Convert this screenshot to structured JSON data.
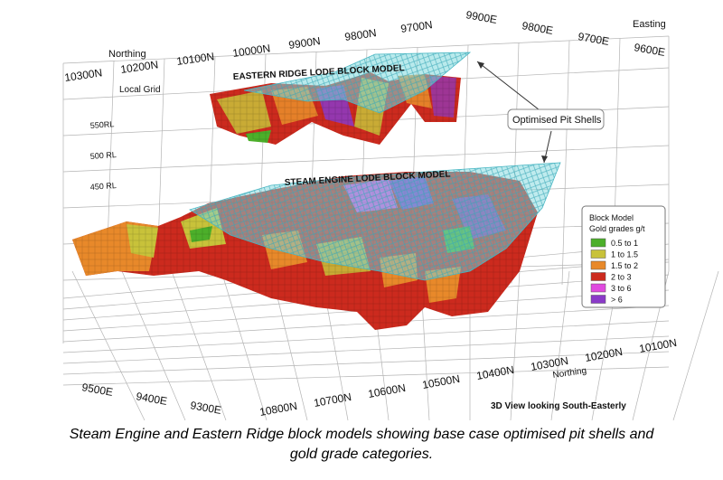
{
  "figure": {
    "northing_top": [
      "10300N",
      "10200N",
      "10100N",
      "10000N",
      "9900N",
      "9800N",
      "9700N"
    ],
    "northing_top_label": "Northing",
    "local_grid_label": "Local Grid",
    "easting_top": [
      "9900E",
      "9800E",
      "9700E",
      "9600E"
    ],
    "easting_top_label": "Easting",
    "rl_labels": [
      "550RL",
      "500 RL",
      "450 RL"
    ],
    "eastern_model_label": "EASTERN RIDGE LODE BLOCK MODEL",
    "steam_model_label": "STEAM ENGINE LODE BLOCK MODEL",
    "pit_shells_label": "Optimised Pit Shells",
    "easting_bottom": [
      "9500E",
      "9400E",
      "9300E"
    ],
    "northing_bottom": [
      "10800N",
      "10700N",
      "10600N",
      "10500N",
      "10400N",
      "10300N",
      "10200N",
      "10100N"
    ],
    "northing_bottom_label": "Northing",
    "view_label": "3D View looking South-Easterly"
  },
  "legend": {
    "title_line1": "Block Model",
    "title_line2": "Gold grades g/t",
    "items": [
      {
        "label": "0.5 to 1",
        "color": "#4caf2a"
      },
      {
        "label": "1 to 1.5",
        "color": "#c8c23a"
      },
      {
        "label": "1.5 to 2",
        "color": "#e8892a"
      },
      {
        "label": "2 to 3",
        "color": "#cc2a1e"
      },
      {
        "label": "3 to 6",
        "color": "#e04adf"
      },
      {
        "label": "> 6",
        "color": "#8a3ac8"
      }
    ]
  },
  "caption": {
    "line1": "Steam Engine and Eastern Ridge block models showing base case optimised pit shells and",
    "line2": "gold grade categories."
  }
}
